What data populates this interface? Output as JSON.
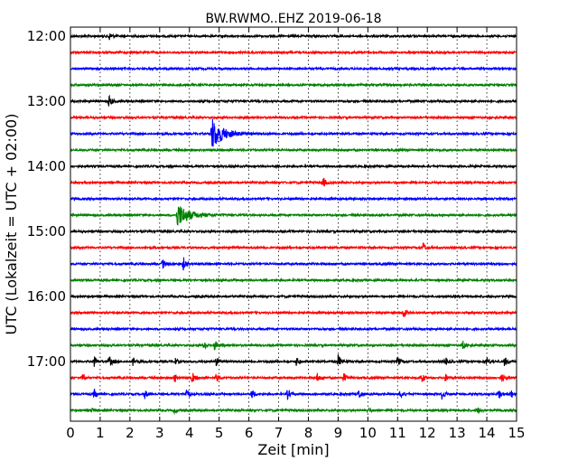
{
  "chart_data": {
    "type": "line",
    "title": "BW.RWMO..EHZ 2019-06-18",
    "xlabel": "Zeit  [min]",
    "ylabel": "UTC (Lokalzeit = UTC + 02:00)",
    "xlim": [
      0,
      15
    ],
    "x_ticks": [
      "0",
      "1",
      "2",
      "3",
      "4",
      "5",
      "6",
      "7",
      "8",
      "9",
      "10",
      "11",
      "12",
      "13",
      "14",
      "15"
    ],
    "y_ticks": [
      "12:00",
      "13:00",
      "14:00",
      "15:00",
      "16:00",
      "17:00"
    ],
    "grid": "vertical dotted at each minute",
    "trace_interval_min": 15,
    "trace_colors": [
      "#000000",
      "#ff0000",
      "#0000ff",
      "#008000"
    ],
    "traces": [
      {
        "start": "12:00",
        "events": [
          {
            "t": 1.3,
            "amp": 0.25
          }
        ]
      },
      {
        "start": "12:15",
        "events": []
      },
      {
        "start": "12:30",
        "events": []
      },
      {
        "start": "12:45",
        "events": []
      },
      {
        "start": "13:00",
        "events": [
          {
            "t": 1.3,
            "amp": 0.35
          }
        ]
      },
      {
        "start": "13:15",
        "events": []
      },
      {
        "start": "13:30",
        "events": [
          {
            "t": 4.75,
            "amp": 1.0
          }
        ]
      },
      {
        "start": "13:45",
        "events": []
      },
      {
        "start": "14:00",
        "events": []
      },
      {
        "start": "14:15",
        "events": [
          {
            "t": 8.5,
            "amp": 0.3
          }
        ]
      },
      {
        "start": "14:30",
        "events": []
      },
      {
        "start": "14:45",
        "events": [
          {
            "t": 3.6,
            "amp": 0.75
          }
        ]
      },
      {
        "start": "15:00",
        "events": []
      },
      {
        "start": "15:15",
        "events": [
          {
            "t": 11.85,
            "amp": 0.35
          }
        ]
      },
      {
        "start": "15:30",
        "events": [
          {
            "t": 3.1,
            "amp": 0.3
          },
          {
            "t": 3.8,
            "amp": 0.4
          }
        ]
      },
      {
        "start": "15:45",
        "events": []
      },
      {
        "start": "16:00",
        "events": []
      },
      {
        "start": "16:15",
        "events": [
          {
            "t": 11.2,
            "amp": 0.3
          }
        ]
      },
      {
        "start": "16:30",
        "events": []
      },
      {
        "start": "16:45",
        "events": [
          {
            "t": 4.5,
            "amp": 0.25
          },
          {
            "t": 4.85,
            "amp": 0.3
          },
          {
            "t": 13.2,
            "amp": 0.25
          }
        ]
      },
      {
        "start": "17:00",
        "events": [
          {
            "t": 0.8,
            "amp": 0.3
          },
          {
            "t": 1.3,
            "amp": 0.35
          },
          {
            "t": 2.1,
            "amp": 0.3
          },
          {
            "t": 3.5,
            "amp": 0.25
          },
          {
            "t": 4.9,
            "amp": 0.25
          },
          {
            "t": 7.6,
            "amp": 0.25
          },
          {
            "t": 9.0,
            "amp": 0.4
          },
          {
            "t": 11.0,
            "amp": 0.3
          },
          {
            "t": 12.6,
            "amp": 0.25
          },
          {
            "t": 14.0,
            "amp": 0.3
          },
          {
            "t": 14.6,
            "amp": 0.3
          }
        ]
      },
      {
        "start": "17:15",
        "events": [
          {
            "t": 0.4,
            "amp": 0.25
          },
          {
            "t": 3.5,
            "amp": 0.25
          },
          {
            "t": 4.1,
            "amp": 0.3
          },
          {
            "t": 4.9,
            "amp": 0.25
          },
          {
            "t": 8.3,
            "amp": 0.25
          },
          {
            "t": 9.2,
            "amp": 0.3
          },
          {
            "t": 11.8,
            "amp": 0.3
          },
          {
            "t": 12.6,
            "amp": 0.25
          },
          {
            "t": 14.5,
            "amp": 0.3
          }
        ]
      },
      {
        "start": "17:30",
        "events": [
          {
            "t": 0.8,
            "amp": 0.3
          },
          {
            "t": 2.5,
            "amp": 0.25
          },
          {
            "t": 3.9,
            "amp": 0.35
          },
          {
            "t": 6.1,
            "amp": 0.3
          },
          {
            "t": 7.3,
            "amp": 0.3
          },
          {
            "t": 9.7,
            "amp": 0.3
          },
          {
            "t": 11.1,
            "amp": 0.3
          },
          {
            "t": 12.5,
            "amp": 0.35
          },
          {
            "t": 14.4,
            "amp": 0.3
          },
          {
            "t": 14.8,
            "amp": 0.3
          }
        ]
      },
      {
        "start": "17:45",
        "events": [
          {
            "t": 0.7,
            "amp": 0.15
          },
          {
            "t": 3.5,
            "amp": 0.15
          },
          {
            "t": 10.0,
            "amp": 0.15
          },
          {
            "t": 13.7,
            "amp": 0.15
          }
        ]
      }
    ]
  }
}
